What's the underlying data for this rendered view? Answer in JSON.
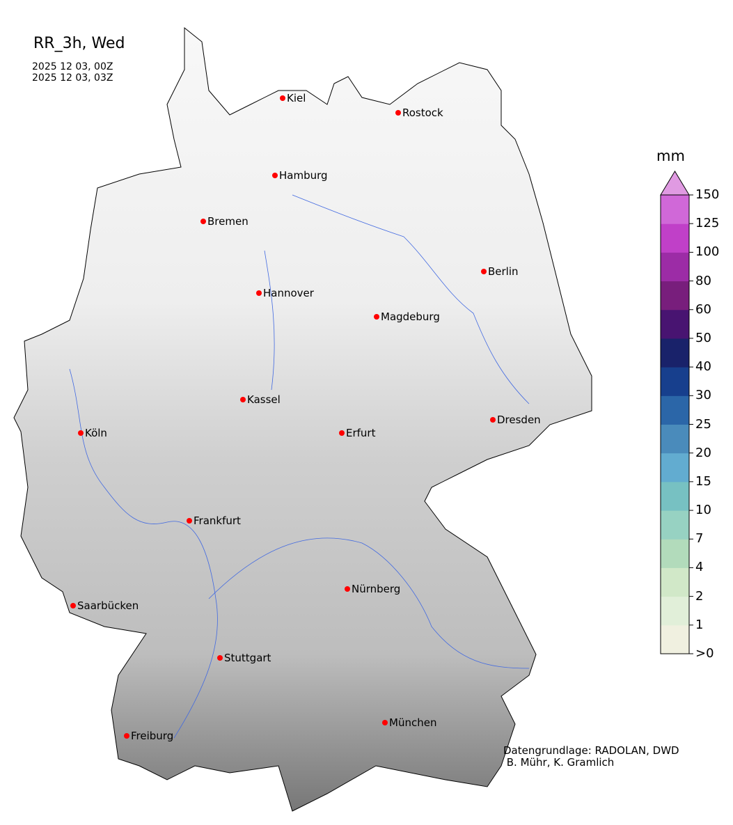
{
  "title": "RR_3h, Wed",
  "period": [
    "2025 12 03, 00Z",
    "2025 12 03, 03Z"
  ],
  "colorbar": {
    "unit": "mm",
    "ticks": [
      ">0",
      "1",
      "2",
      "4",
      "7",
      "10",
      "15",
      "20",
      "25",
      "30",
      "40",
      "50",
      "60",
      "80",
      "100",
      "125",
      "150"
    ],
    "colors": [
      "#f0f0e0",
      "#e1efd9",
      "#d1e8c8",
      "#b2dbbb",
      "#97d2c2",
      "#77c1c2",
      "#62acd0",
      "#4a8bbb",
      "#2b66a8",
      "#173f8d",
      "#19226a",
      "#481471",
      "#781e7c",
      "#9c2ca6",
      "#c040c8",
      "#d068d8"
    ],
    "extend_color": "#e09ae2"
  },
  "cities": [
    "Kiel",
    "Rostock",
    "Hamburg",
    "Bremen",
    "Berlin",
    "Hannover",
    "Magdeburg",
    "Kassel",
    "Dresden",
    "Köln",
    "Erfurt",
    "Frankfurt",
    "Nürnberg",
    "Saarbücken",
    "Stuttgart",
    "Freiburg",
    "München"
  ],
  "city_marker_color": "#ff0000",
  "river_color": "#4169e1",
  "credits": [
    "Datengrundlage: RADOLAN, DWD",
    " B. Mühr, K. Gramlich"
  ]
}
